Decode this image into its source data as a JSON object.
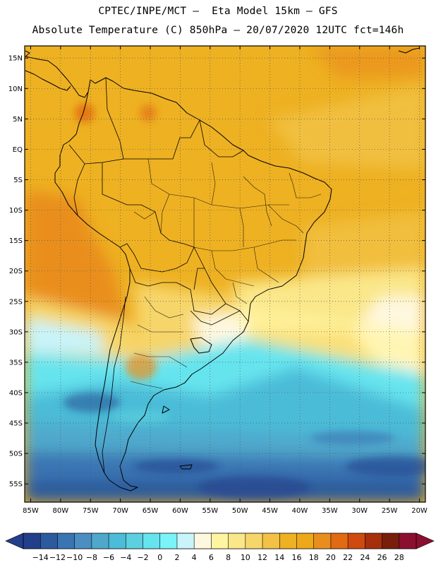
{
  "header": {
    "line1": "CPTEC/INPE/MCT –  Eta Model 15km – GFS",
    "line2": "Absolute Temperature (C) 850hPa – 20/07/2020 12UTC fct=146h"
  },
  "map": {
    "lon_range": [
      -86,
      -19
    ],
    "lat_range": [
      -58,
      17
    ],
    "grid": "dotted",
    "lat_labels": [
      "15N",
      "10N",
      "5N",
      "EQ",
      "5S",
      "10S",
      "15S",
      "20S",
      "25S",
      "30S",
      "35S",
      "40S",
      "45S",
      "50S",
      "55S"
    ],
    "lat_values": [
      15,
      10,
      5,
      0,
      -5,
      -10,
      -15,
      -20,
      -25,
      -30,
      -35,
      -40,
      -45,
      -50,
      -55
    ],
    "lon_labels": [
      "85W",
      "80W",
      "75W",
      "70W",
      "65W",
      "60W",
      "55W",
      "50W",
      "45W",
      "40W",
      "35W",
      "30W",
      "25W",
      "20W"
    ],
    "lon_values": [
      -85,
      -80,
      -75,
      -70,
      -65,
      -60,
      -55,
      -50,
      -45,
      -40,
      -35,
      -30,
      -25,
      -20
    ]
  },
  "colorbar": {
    "labels": [
      "-14",
      "-12",
      "-10",
      "-8",
      "-6",
      "-4",
      "-2",
      "0",
      "2",
      "4",
      "6",
      "8",
      "10",
      "12",
      "14",
      "16",
      "18",
      "20",
      "22",
      "24",
      "26",
      "28"
    ],
    "colors": [
      "#233f8c",
      "#2c5a9e",
      "#3a74b2",
      "#4b8ec2",
      "#4fa8cc",
      "#4cbcd8",
      "#5cd0e0",
      "#66e4ee",
      "#7af4f8",
      "#c8f4fa",
      "#fef8e0",
      "#fff4a0",
      "#fae78a",
      "#f6d66a",
      "#f1c246",
      "#eeb122",
      "#eea91a",
      "#e98e1e",
      "#e26a12",
      "#cf4a0e",
      "#a82f0c",
      "#7a1e0c",
      "#8c0f30"
    ],
    "left_arrow_color": "#233f8c",
    "right_arrow_color": "#8c0f30"
  }
}
